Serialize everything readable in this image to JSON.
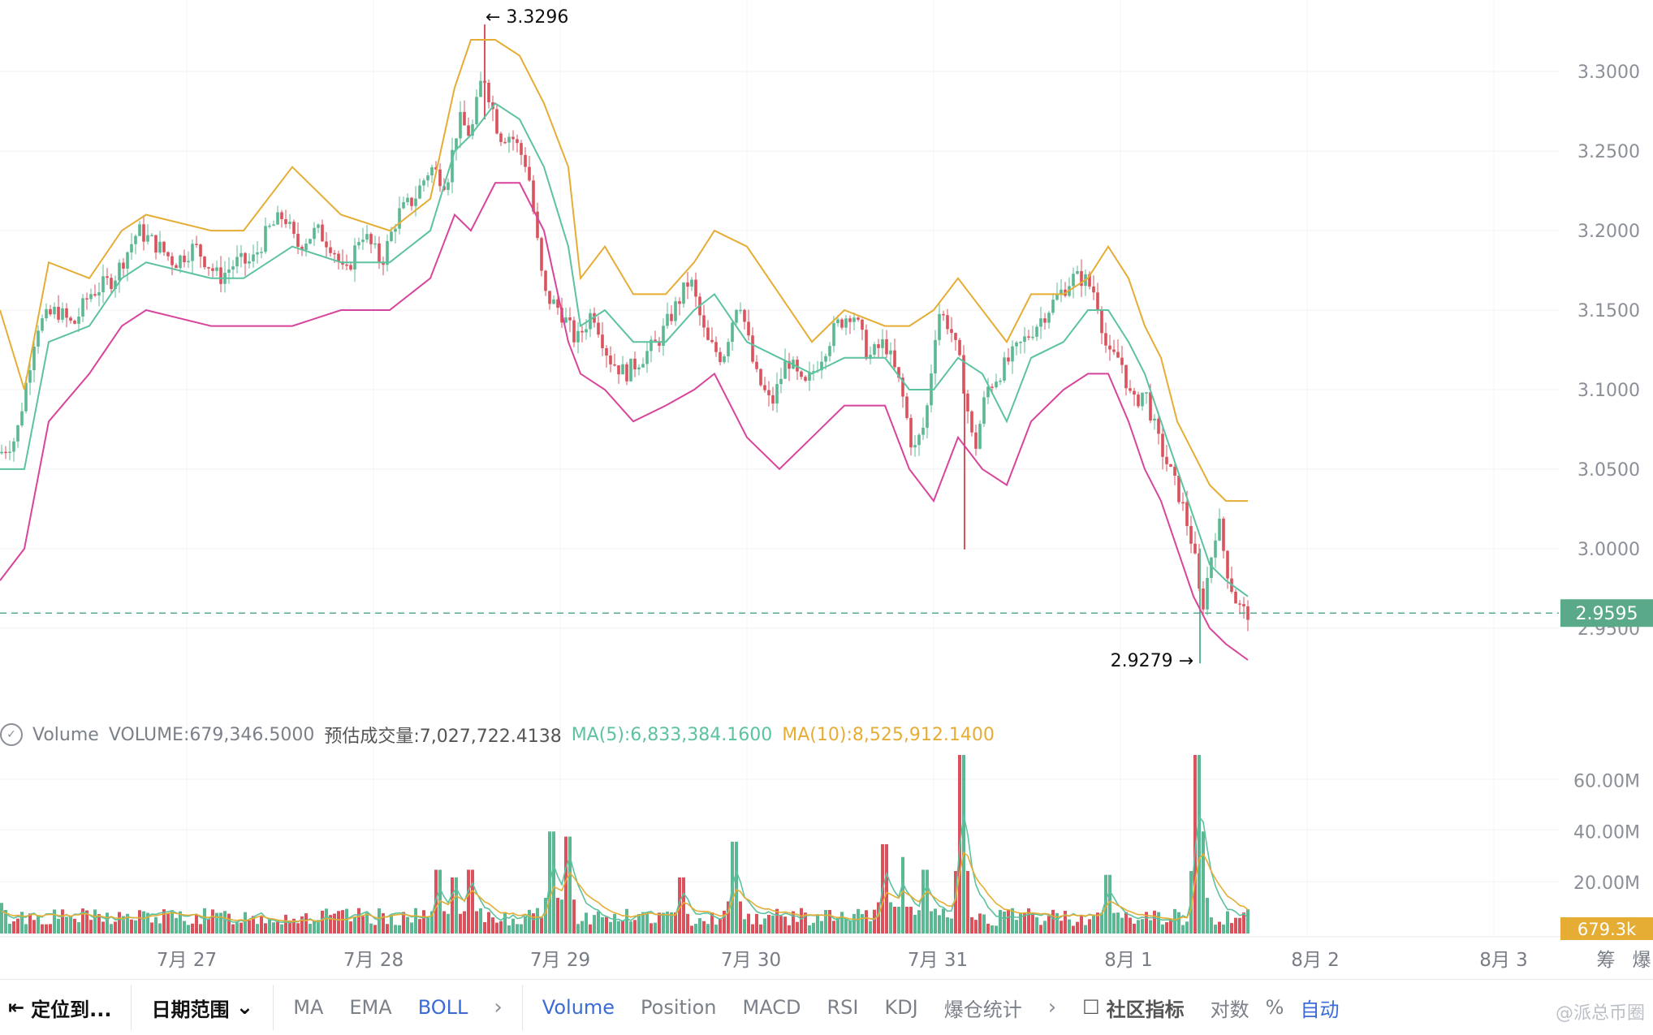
{
  "chart_data": {
    "type": "candlestick",
    "indicator": "BOLL",
    "price_axis": {
      "ticks": [
        "3.3000",
        "3.2500",
        "3.2000",
        "3.1500",
        "3.1000",
        "3.0500",
        "3.0000",
        "2.9500"
      ],
      "range": [
        2.905,
        3.345
      ]
    },
    "current_price": "2.9595",
    "high_marker": "3.3296",
    "low_marker": "2.9279",
    "x_labels": [
      "7月 27",
      "7月 28",
      "7月 29",
      "7月 30",
      "7月 31",
      "8月 1",
      "8月 2",
      "8月 3"
    ],
    "price_path": [
      [
        0,
        3.06
      ],
      [
        20,
        3.07
      ],
      [
        45,
        3.14
      ],
      [
        70,
        3.15
      ],
      [
        90,
        3.14
      ],
      [
        110,
        3.16
      ],
      [
        140,
        3.17
      ],
      [
        170,
        3.2
      ],
      [
        195,
        3.19
      ],
      [
        215,
        3.18
      ],
      [
        240,
        3.19
      ],
      [
        270,
        3.17
      ],
      [
        290,
        3.18
      ],
      [
        310,
        3.18
      ],
      [
        330,
        3.2
      ],
      [
        350,
        3.21
      ],
      [
        365,
        3.19
      ],
      [
        390,
        3.2
      ],
      [
        410,
        3.19
      ],
      [
        425,
        3.17
      ],
      [
        445,
        3.2
      ],
      [
        470,
        3.18
      ],
      [
        490,
        3.21
      ],
      [
        510,
        3.22
      ],
      [
        530,
        3.24
      ],
      [
        550,
        3.23
      ],
      [
        565,
        3.27
      ],
      [
        580,
        3.26
      ],
      [
        595,
        3.3
      ],
      [
        605,
        3.28
      ],
      [
        615,
        3.26
      ],
      [
        630,
        3.26
      ],
      [
        650,
        3.24
      ],
      [
        670,
        3.16
      ],
      [
        690,
        3.15
      ],
      [
        710,
        3.13
      ],
      [
        730,
        3.15
      ],
      [
        750,
        3.12
      ],
      [
        770,
        3.11
      ],
      [
        790,
        3.12
      ],
      [
        810,
        3.13
      ],
      [
        830,
        3.15
      ],
      [
        850,
        3.17
      ],
      [
        870,
        3.13
      ],
      [
        890,
        3.12
      ],
      [
        910,
        3.16
      ],
      [
        930,
        3.11
      ],
      [
        950,
        3.09
      ],
      [
        970,
        3.12
      ],
      [
        990,
        3.1
      ],
      [
        1010,
        3.12
      ],
      [
        1030,
        3.14
      ],
      [
        1050,
        3.15
      ],
      [
        1070,
        3.12
      ],
      [
        1090,
        3.13
      ],
      [
        1110,
        3.1
      ],
      [
        1125,
        3.06
      ],
      [
        1140,
        3.08
      ],
      [
        1155,
        3.15
      ],
      [
        1170,
        3.14
      ],
      [
        1185,
        3.11
      ],
      [
        1200,
        3.06
      ],
      [
        1215,
        3.1
      ],
      [
        1230,
        3.11
      ],
      [
        1245,
        3.12
      ],
      [
        1260,
        3.13
      ],
      [
        1275,
        3.14
      ],
      [
        1290,
        3.15
      ],
      [
        1305,
        3.16
      ],
      [
        1320,
        3.17
      ],
      [
        1335,
        3.17
      ],
      [
        1350,
        3.16
      ],
      [
        1365,
        3.12
      ],
      [
        1380,
        3.12
      ],
      [
        1395,
        3.09
      ],
      [
        1410,
        3.1
      ],
      [
        1425,
        3.07
      ],
      [
        1440,
        3.05
      ],
      [
        1455,
        3.03
      ],
      [
        1470,
        3.0
      ],
      [
        1480,
        2.96
      ],
      [
        1490,
        2.99
      ],
      [
        1500,
        3.02
      ],
      [
        1510,
        2.99
      ],
      [
        1520,
        2.97
      ],
      [
        1530,
        2.96
      ],
      [
        1537,
        2.96
      ]
    ],
    "boll_upper": [
      [
        0,
        3.15
      ],
      [
        30,
        3.1
      ],
      [
        60,
        3.18
      ],
      [
        110,
        3.17
      ],
      [
        150,
        3.2
      ],
      [
        180,
        3.21
      ],
      [
        260,
        3.2
      ],
      [
        300,
        3.2
      ],
      [
        360,
        3.24
      ],
      [
        420,
        3.21
      ],
      [
        480,
        3.2
      ],
      [
        530,
        3.22
      ],
      [
        560,
        3.29
      ],
      [
        580,
        3.32
      ],
      [
        610,
        3.32
      ],
      [
        640,
        3.31
      ],
      [
        670,
        3.28
      ],
      [
        700,
        3.24
      ],
      [
        715,
        3.17
      ],
      [
        745,
        3.19
      ],
      [
        780,
        3.16
      ],
      [
        820,
        3.16
      ],
      [
        855,
        3.18
      ],
      [
        880,
        3.2
      ],
      [
        920,
        3.19
      ],
      [
        960,
        3.16
      ],
      [
        1000,
        3.13
      ],
      [
        1040,
        3.15
      ],
      [
        1090,
        3.14
      ],
      [
        1120,
        3.14
      ],
      [
        1150,
        3.15
      ],
      [
        1180,
        3.17
      ],
      [
        1210,
        3.15
      ],
      [
        1240,
        3.13
      ],
      [
        1270,
        3.16
      ],
      [
        1310,
        3.16
      ],
      [
        1340,
        3.17
      ],
      [
        1365,
        3.19
      ],
      [
        1390,
        3.17
      ],
      [
        1410,
        3.14
      ],
      [
        1430,
        3.12
      ],
      [
        1450,
        3.08
      ],
      [
        1470,
        3.06
      ],
      [
        1490,
        3.04
      ],
      [
        1510,
        3.03
      ],
      [
        1537,
        3.03
      ]
    ],
    "boll_mid": [
      [
        0,
        3.05
      ],
      [
        30,
        3.05
      ],
      [
        60,
        3.13
      ],
      [
        110,
        3.14
      ],
      [
        150,
        3.17
      ],
      [
        180,
        3.18
      ],
      [
        260,
        3.17
      ],
      [
        300,
        3.17
      ],
      [
        360,
        3.19
      ],
      [
        420,
        3.18
      ],
      [
        480,
        3.18
      ],
      [
        530,
        3.2
      ],
      [
        560,
        3.25
      ],
      [
        580,
        3.26
      ],
      [
        610,
        3.28
      ],
      [
        640,
        3.27
      ],
      [
        670,
        3.24
      ],
      [
        700,
        3.19
      ],
      [
        715,
        3.14
      ],
      [
        745,
        3.15
      ],
      [
        780,
        3.13
      ],
      [
        820,
        3.13
      ],
      [
        855,
        3.15
      ],
      [
        880,
        3.16
      ],
      [
        920,
        3.13
      ],
      [
        960,
        3.12
      ],
      [
        1000,
        3.11
      ],
      [
        1040,
        3.12
      ],
      [
        1090,
        3.12
      ],
      [
        1120,
        3.1
      ],
      [
        1150,
        3.1
      ],
      [
        1180,
        3.12
      ],
      [
        1210,
        3.11
      ],
      [
        1240,
        3.08
      ],
      [
        1270,
        3.12
      ],
      [
        1310,
        3.13
      ],
      [
        1340,
        3.15
      ],
      [
        1365,
        3.15
      ],
      [
        1390,
        3.13
      ],
      [
        1410,
        3.11
      ],
      [
        1430,
        3.08
      ],
      [
        1450,
        3.05
      ],
      [
        1470,
        3.02
      ],
      [
        1490,
        2.99
      ],
      [
        1510,
        2.98
      ],
      [
        1537,
        2.97
      ]
    ],
    "boll_lower": [
      [
        0,
        2.98
      ],
      [
        30,
        3.0
      ],
      [
        60,
        3.08
      ],
      [
        110,
        3.11
      ],
      [
        150,
        3.14
      ],
      [
        180,
        3.15
      ],
      [
        260,
        3.14
      ],
      [
        300,
        3.14
      ],
      [
        360,
        3.14
      ],
      [
        420,
        3.15
      ],
      [
        480,
        3.15
      ],
      [
        530,
        3.17
      ],
      [
        560,
        3.21
      ],
      [
        580,
        3.2
      ],
      [
        610,
        3.23
      ],
      [
        640,
        3.23
      ],
      [
        670,
        3.2
      ],
      [
        700,
        3.13
      ],
      [
        715,
        3.11
      ],
      [
        745,
        3.1
      ],
      [
        780,
        3.08
      ],
      [
        820,
        3.09
      ],
      [
        855,
        3.1
      ],
      [
        880,
        3.11
      ],
      [
        920,
        3.07
      ],
      [
        960,
        3.05
      ],
      [
        1000,
        3.07
      ],
      [
        1040,
        3.09
      ],
      [
        1090,
        3.09
      ],
      [
        1120,
        3.05
      ],
      [
        1150,
        3.03
      ],
      [
        1180,
        3.07
      ],
      [
        1210,
        3.05
      ],
      [
        1240,
        3.04
      ],
      [
        1270,
        3.08
      ],
      [
        1310,
        3.1
      ],
      [
        1340,
        3.11
      ],
      [
        1365,
        3.11
      ],
      [
        1390,
        3.08
      ],
      [
        1410,
        3.05
      ],
      [
        1430,
        3.03
      ],
      [
        1450,
        3.0
      ],
      [
        1470,
        2.97
      ],
      [
        1490,
        2.95
      ],
      [
        1510,
        2.94
      ],
      [
        1537,
        2.93
      ]
    ],
    "volume": {
      "label": "Volume",
      "value": "VOLUME:679,346.5000",
      "estimate": "预估成交量:7,027,722.4138",
      "ma5": "MA(5):6,833,384.1600",
      "ma10": "MA(10):8,525,912.1400",
      "axis_ticks": [
        "60.00M",
        "40.00M",
        "20.00M"
      ],
      "current": "679.3k",
      "range_max": 70,
      "spikes": [
        [
          0,
          12
        ],
        [
          680,
          40
        ],
        [
          700,
          38
        ],
        [
          905,
          36
        ],
        [
          1185,
          70
        ],
        [
          1474,
          70
        ],
        [
          1480,
          40
        ],
        [
          1090,
          35
        ],
        [
          1113,
          30
        ],
        [
          1140,
          25
        ],
        [
          1365,
          23
        ],
        [
          840,
          22
        ],
        [
          540,
          25
        ],
        [
          580,
          25
        ],
        [
          560,
          22
        ]
      ]
    },
    "colors": {
      "up": "#5bb893",
      "down": "#d9525c",
      "upper": "#e6ad35",
      "mid": "#5cc2a0",
      "lower": "#d8449b",
      "badge": "#5aaa8a",
      "vol_badge": "#e6ad35"
    }
  },
  "toolbar": {
    "locate": "定位到...",
    "date_range": "日期范围",
    "ma": "MA",
    "ema": "EMA",
    "boll": "BOLL",
    "volume": "Volume",
    "position": "Position",
    "macd": "MACD",
    "rsi": "RSI",
    "kdj": "KDJ",
    "liquidation": "爆仓统计",
    "community": "社区指标",
    "log": "对数",
    "percent": "%",
    "auto": "自动"
  },
  "right_top": [
    "筹",
    "爆"
  ],
  "watermark": "@派总币圈"
}
